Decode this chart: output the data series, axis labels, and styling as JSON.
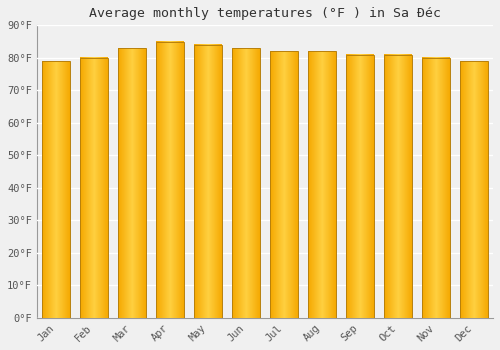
{
  "title": "Average monthly temperatures (°F ) in Sa Đéc",
  "months": [
    "Jan",
    "Feb",
    "Mar",
    "Apr",
    "May",
    "Jun",
    "Jul",
    "Aug",
    "Sep",
    "Oct",
    "Nov",
    "Dec"
  ],
  "values": [
    79,
    80,
    83,
    85,
    84,
    83,
    82,
    82,
    81,
    81,
    80,
    79
  ],
  "ylim": [
    0,
    90
  ],
  "yticks": [
    0,
    10,
    20,
    30,
    40,
    50,
    60,
    70,
    80,
    90
  ],
  "ytick_labels": [
    "0°F",
    "10°F",
    "20°F",
    "30°F",
    "40°F",
    "50°F",
    "60°F",
    "70°F",
    "80°F",
    "90°F"
  ],
  "background_color": "#f0f0f0",
  "grid_color": "#ffffff",
  "bar_color_center": "#FFD040",
  "bar_color_edge": "#F5A800",
  "bar_edge_color": "#b8860b",
  "title_fontsize": 9.5,
  "tick_fontsize": 7.5,
  "bar_width": 0.72,
  "figsize": [
    5.0,
    3.5
  ],
  "dpi": 100
}
